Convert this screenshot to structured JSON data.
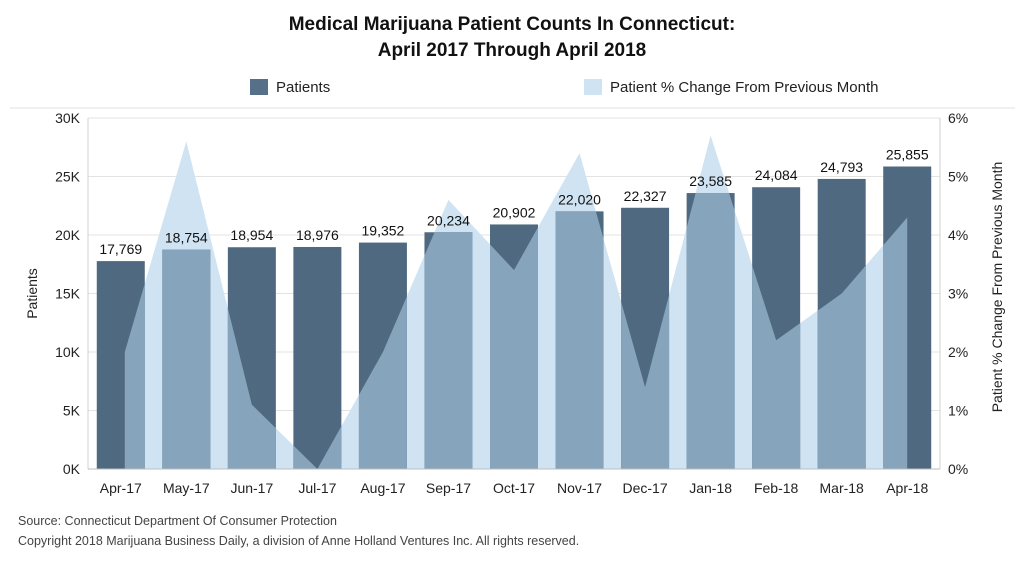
{
  "chart_data": {
    "type": "bar",
    "title_line1": "Medical Marijuana Patient Counts In Connecticut:",
    "title_line2": "April 2017 Through April 2018",
    "categories": [
      "Apr-17",
      "May-17",
      "Jun-17",
      "Jul-17",
      "Aug-17",
      "Sep-17",
      "Oct-17",
      "Nov-17",
      "Dec-17",
      "Jan-18",
      "Feb-18",
      "Mar-18",
      "Apr-18"
    ],
    "series": [
      {
        "name": "Patients",
        "type": "bar",
        "axis": "left",
        "values": [
          17769,
          18754,
          18954,
          18976,
          19352,
          20234,
          20902,
          22020,
          22327,
          23585,
          24084,
          24793,
          25855
        ],
        "labels": [
          "17,769",
          "18,754",
          "18,954",
          "18,976",
          "19,352",
          "20,234",
          "20,902",
          "22,020",
          "22,327",
          "23,585",
          "24,084",
          "24,793",
          "25,855"
        ],
        "color": "#4e6980"
      },
      {
        "name": "Patient % Change From Previous Month",
        "type": "area",
        "axis": "right",
        "values": [
          2.0,
          5.6,
          1.1,
          0.0,
          2.0,
          4.6,
          3.4,
          5.4,
          1.4,
          5.7,
          2.2,
          3.0,
          4.3
        ],
        "color": "#cfe3f3"
      }
    ],
    "ylabel": "Patients",
    "ylabel_right": "Patient % Change From Previous Month",
    "ylim": [
      0,
      30000
    ],
    "ylim_right": [
      0,
      6
    ],
    "yticks": [
      "0K",
      "5K",
      "10K",
      "15K",
      "20K",
      "25K",
      "30K"
    ],
    "yticks_right": [
      "0%",
      "1%",
      "2%",
      "3%",
      "4%",
      "5%",
      "6%"
    ],
    "grid": true,
    "legend": "top"
  },
  "footer": {
    "source": "Source: Connecticut Department Of Consumer Protection",
    "copyright": "Copyright 2018 Marijuana Business Daily, a division of Anne Holland Ventures Inc. All rights reserved."
  }
}
